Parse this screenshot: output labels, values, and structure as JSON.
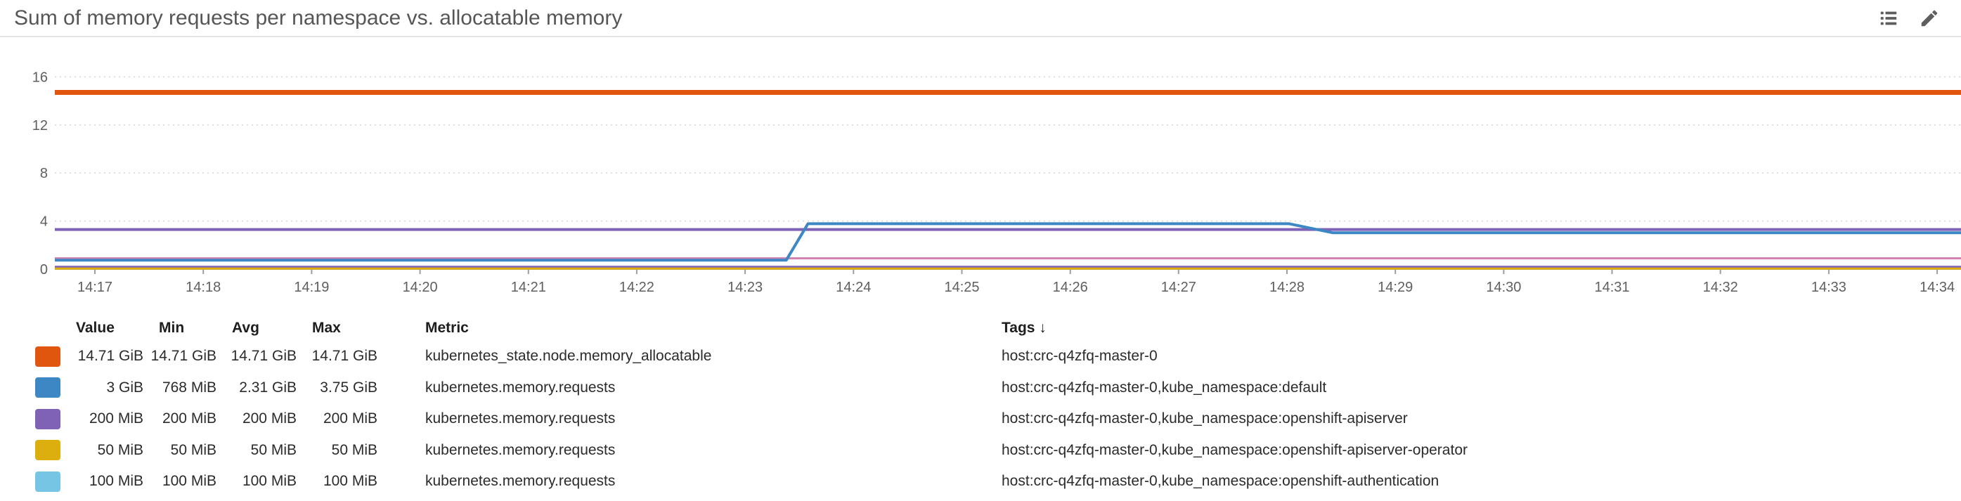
{
  "header": {
    "title": "Sum of memory requests per namespace vs. allocatable memory",
    "icons": [
      {
        "name": "legend-list-icon"
      },
      {
        "name": "edit-pencil-icon"
      }
    ]
  },
  "chart_data": {
    "type": "line",
    "title": "Sum of memory requests per namespace vs. allocatable memory",
    "unit": "GiB",
    "grid": "horizontal-dotted",
    "x_tick_labels": [
      "14:17",
      "14:18",
      "14:19",
      "14:20",
      "14:21",
      "14:22",
      "14:23",
      "14:24",
      "14:25",
      "14:26",
      "14:27",
      "14:28",
      "14:29",
      "14:30",
      "14:31",
      "14:32",
      "14:33",
      "14:34"
    ],
    "x_tick_minutes": [
      0,
      1,
      2,
      3,
      4,
      5,
      6,
      7,
      8,
      9,
      10,
      11,
      12,
      13,
      14,
      15,
      16,
      17
    ],
    "xlim_minutes": [
      -0.37,
      17.22
    ],
    "y_ticks": [
      0,
      4,
      8,
      12,
      16
    ],
    "ylim": [
      0,
      19.3
    ],
    "series": [
      {
        "id": "unlabeled-purple-line",
        "metric": "",
        "tags": "",
        "color": "#7f62b5",
        "width": 4,
        "points": [
          [
            -0.37,
            3.3
          ],
          [
            17.22,
            3.3
          ]
        ]
      },
      {
        "id": "unlabeled-pink-line",
        "metric": "",
        "tags": "",
        "color": "#d27fb0",
        "width": 3,
        "points": [
          [
            -0.37,
            0.9
          ],
          [
            17.22,
            0.9
          ]
        ]
      },
      {
        "id": "openshift-authentication",
        "metric": "kubernetes.memory.requests",
        "tags": "host:crc-q4zfq-master-0,kube_namespace:openshift-authentication",
        "color": "#76c5e5",
        "width": 3,
        "points": [
          [
            -0.37,
            0.098
          ],
          [
            17.22,
            0.098
          ]
        ]
      },
      {
        "id": "openshift-apiserver",
        "metric": "kubernetes.memory.requests",
        "tags": "host:crc-q4zfq-master-0,kube_namespace:openshift-apiserver",
        "color": "#7f62b5",
        "width": 3,
        "points": [
          [
            -0.37,
            0.195
          ],
          [
            17.22,
            0.195
          ]
        ]
      },
      {
        "id": "openshift-apiserver-operator",
        "metric": "kubernetes.memory.requests",
        "tags": "host:crc-q4zfq-master-0,kube_namespace:openshift-apiserver-operator",
        "color": "#dcaf0e",
        "width": 3,
        "points": [
          [
            -0.37,
            0.049
          ],
          [
            17.22,
            0.049
          ]
        ]
      },
      {
        "id": "default-namespace",
        "metric": "kubernetes.memory.requests",
        "tags": "host:crc-q4zfq-master-0,kube_namespace:default",
        "color": "#3c87c4",
        "width": 4,
        "points": [
          [
            -0.37,
            0.75
          ],
          [
            6.38,
            0.75
          ],
          [
            6.58,
            3.78
          ],
          [
            11.02,
            3.78
          ],
          [
            11.42,
            3.03
          ],
          [
            17.22,
            3.03
          ]
        ]
      },
      {
        "id": "allocatable-memory",
        "metric": "kubernetes_state.node.memory_allocatable",
        "tags": "host:crc-q4zfq-master-0",
        "color": "#e0560e",
        "width": 7,
        "points": [
          [
            -0.37,
            14.71
          ],
          [
            17.22,
            14.71
          ]
        ]
      }
    ]
  },
  "legend": {
    "columns": [
      {
        "label": "Value",
        "align": "right"
      },
      {
        "label": "Min",
        "align": "right"
      },
      {
        "label": "Avg",
        "align": "right"
      },
      {
        "label": "Max",
        "align": "right"
      },
      {
        "label": "Metric",
        "align": "left"
      },
      {
        "label": "Tags",
        "sort": "↓",
        "align": "left"
      }
    ],
    "rows": [
      {
        "color": "#e0560e",
        "value": "14.71 GiB",
        "min": "14.71 GiB",
        "avg": "14.71 GiB",
        "max": "14.71 GiB",
        "metric": "kubernetes_state.node.memory_allocatable",
        "tags": "host:crc-q4zfq-master-0"
      },
      {
        "color": "#3c87c4",
        "value": "3 GiB",
        "min": "768 MiB",
        "avg": "2.31 GiB",
        "max": "3.75 GiB",
        "metric": "kubernetes.memory.requests",
        "tags": "host:crc-q4zfq-master-0,kube_namespace:default"
      },
      {
        "color": "#7f62b5",
        "value": "200 MiB",
        "min": "200 MiB",
        "avg": "200 MiB",
        "max": "200 MiB",
        "metric": "kubernetes.memory.requests",
        "tags": "host:crc-q4zfq-master-0,kube_namespace:openshift-apiserver"
      },
      {
        "color": "#dcaf0e",
        "value": "50 MiB",
        "min": "50 MiB",
        "avg": "50 MiB",
        "max": "50 MiB",
        "metric": "kubernetes.memory.requests",
        "tags": "host:crc-q4zfq-master-0,kube_namespace:openshift-apiserver-operator"
      },
      {
        "color": "#76c5e5",
        "value": "100 MiB",
        "min": "100 MiB",
        "avg": "100 MiB",
        "max": "100 MiB",
        "metric": "kubernetes.memory.requests",
        "tags": "host:crc-q4zfq-master-0,kube_namespace:openshift-authentication"
      }
    ]
  }
}
